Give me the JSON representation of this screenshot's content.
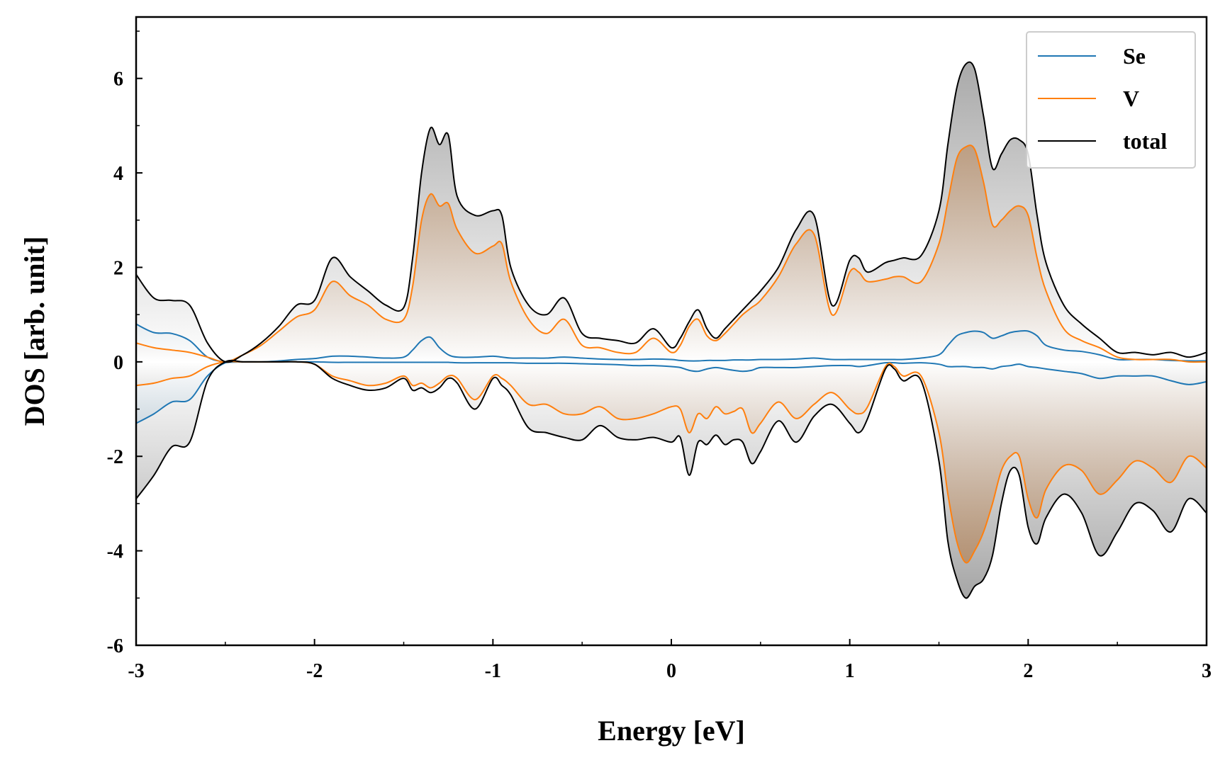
{
  "chart_data": {
    "type": "line",
    "xlabel": "Energy [eV]",
    "ylabel": "DOS [arb. unit]",
    "xlim": [
      -3,
      3
    ],
    "ylim": [
      -6,
      7.3
    ],
    "xticks": [
      -3,
      -2,
      -1,
      0,
      1,
      2,
      3
    ],
    "xtick_labels": [
      "-3",
      "-2",
      "-1",
      "0",
      "1",
      "2",
      "3"
    ],
    "yticks": [
      -6,
      -4,
      -2,
      0,
      2,
      4,
      6
    ],
    "ytick_labels": [
      "-6",
      "-4",
      "-2",
      "0",
      "2",
      "4",
      "6"
    ],
    "grid": false,
    "legend_position": "top-right",
    "fill": "gradient to zero line",
    "x": [
      -3.0,
      -2.9,
      -2.8,
      -2.7,
      -2.6,
      -2.5,
      -2.4,
      -2.3,
      -2.2,
      -2.1,
      -2.0,
      -1.9,
      -1.8,
      -1.7,
      -1.6,
      -1.5,
      -1.45,
      -1.4,
      -1.35,
      -1.3,
      -1.25,
      -1.2,
      -1.1,
      -1.0,
      -0.95,
      -0.9,
      -0.8,
      -0.7,
      -0.6,
      -0.5,
      -0.4,
      -0.3,
      -0.2,
      -0.1,
      0.0,
      0.05,
      0.1,
      0.15,
      0.2,
      0.25,
      0.3,
      0.35,
      0.4,
      0.45,
      0.5,
      0.6,
      0.7,
      0.8,
      0.9,
      1.0,
      1.05,
      1.1,
      1.2,
      1.25,
      1.3,
      1.4,
      1.5,
      1.55,
      1.6,
      1.65,
      1.7,
      1.75,
      1.8,
      1.85,
      1.9,
      1.95,
      2.0,
      2.05,
      2.1,
      2.2,
      2.3,
      2.4,
      2.5,
      2.6,
      2.7,
      2.8,
      2.9,
      3.0
    ],
    "series": [
      {
        "name": "Se",
        "color": "#1f77b4",
        "up": [
          0.8,
          0.62,
          0.6,
          0.45,
          0.1,
          0.0,
          0.0,
          0.0,
          0.02,
          0.05,
          0.07,
          0.12,
          0.12,
          0.1,
          0.08,
          0.1,
          0.25,
          0.45,
          0.52,
          0.3,
          0.15,
          0.1,
          0.1,
          0.12,
          0.1,
          0.08,
          0.08,
          0.08,
          0.1,
          0.08,
          0.06,
          0.05,
          0.05,
          0.06,
          0.05,
          0.03,
          0.02,
          0.02,
          0.03,
          0.03,
          0.03,
          0.04,
          0.04,
          0.04,
          0.05,
          0.05,
          0.06,
          0.08,
          0.05,
          0.05,
          0.05,
          0.05,
          0.05,
          0.05,
          0.05,
          0.08,
          0.15,
          0.35,
          0.55,
          0.62,
          0.65,
          0.62,
          0.5,
          0.55,
          0.62,
          0.65,
          0.65,
          0.55,
          0.35,
          0.25,
          0.22,
          0.15,
          0.05,
          0.05,
          0.05,
          0.03,
          0.02,
          0.02
        ],
        "down": [
          -1.3,
          -1.1,
          -0.85,
          -0.8,
          -0.3,
          -0.02,
          0.0,
          0.0,
          0.0,
          0.0,
          0.0,
          -0.01,
          -0.01,
          -0.01,
          -0.01,
          -0.01,
          -0.01,
          -0.01,
          -0.01,
          -0.01,
          -0.01,
          -0.02,
          -0.02,
          -0.02,
          -0.02,
          -0.02,
          -0.03,
          -0.03,
          -0.03,
          -0.04,
          -0.05,
          -0.06,
          -0.08,
          -0.08,
          -0.1,
          -0.12,
          -0.18,
          -0.2,
          -0.15,
          -0.12,
          -0.15,
          -0.18,
          -0.2,
          -0.18,
          -0.12,
          -0.12,
          -0.12,
          -0.1,
          -0.08,
          -0.08,
          -0.1,
          -0.08,
          -0.02,
          -0.02,
          -0.03,
          -0.02,
          -0.05,
          -0.1,
          -0.1,
          -0.1,
          -0.12,
          -0.12,
          -0.15,
          -0.1,
          -0.08,
          -0.05,
          -0.1,
          -0.12,
          -0.15,
          -0.2,
          -0.25,
          -0.35,
          -0.3,
          -0.3,
          -0.3,
          -0.4,
          -0.48,
          -0.42
        ]
      },
      {
        "name": "V",
        "color": "#ff7f0e",
        "up": [
          0.4,
          0.3,
          0.25,
          0.2,
          0.1,
          0.0,
          0.15,
          0.35,
          0.65,
          0.95,
          1.1,
          1.7,
          1.4,
          1.2,
          0.9,
          0.9,
          1.6,
          3.0,
          3.55,
          3.3,
          3.35,
          2.8,
          2.3,
          2.45,
          2.5,
          1.7,
          0.9,
          0.6,
          0.9,
          0.35,
          0.3,
          0.2,
          0.2,
          0.5,
          0.2,
          0.35,
          0.75,
          0.9,
          0.55,
          0.45,
          0.6,
          0.8,
          1.0,
          1.15,
          1.3,
          1.8,
          2.5,
          2.7,
          1.0,
          1.9,
          1.9,
          1.7,
          1.75,
          1.8,
          1.8,
          1.7,
          2.5,
          3.4,
          4.3,
          4.55,
          4.5,
          3.8,
          2.9,
          3.0,
          3.2,
          3.3,
          3.1,
          2.2,
          1.5,
          0.7,
          0.45,
          0.3,
          0.1,
          0.05,
          0.05,
          0.05,
          0.0,
          0.0
        ],
        "down": [
          -0.5,
          -0.45,
          -0.35,
          -0.3,
          -0.1,
          0.0,
          0.0,
          0.0,
          0.0,
          0.0,
          -0.05,
          -0.3,
          -0.4,
          -0.5,
          -0.45,
          -0.3,
          -0.5,
          -0.45,
          -0.55,
          -0.45,
          -0.3,
          -0.35,
          -0.8,
          -0.3,
          -0.35,
          -0.5,
          -0.9,
          -0.9,
          -1.1,
          -1.1,
          -0.95,
          -1.2,
          -1.2,
          -1.1,
          -0.95,
          -1.0,
          -1.5,
          -1.1,
          -1.2,
          -0.95,
          -1.1,
          -1.05,
          -1.0,
          -1.5,
          -1.3,
          -0.85,
          -1.2,
          -0.9,
          -0.65,
          -1.0,
          -1.1,
          -0.95,
          -0.1,
          -0.1,
          -0.3,
          -0.3,
          -1.5,
          -2.8,
          -3.8,
          -4.25,
          -4.0,
          -3.6,
          -3.0,
          -2.3,
          -2.0,
          -2.0,
          -2.9,
          -3.3,
          -2.7,
          -2.2,
          -2.3,
          -2.8,
          -2.5,
          -2.1,
          -2.25,
          -2.55,
          -2.0,
          -2.25
        ]
      },
      {
        "name": "total",
        "color": "#000000",
        "up": [
          1.85,
          1.35,
          1.3,
          1.2,
          0.4,
          0.0,
          0.15,
          0.4,
          0.75,
          1.2,
          1.3,
          2.2,
          1.8,
          1.5,
          1.2,
          1.15,
          2.2,
          4.0,
          4.95,
          4.6,
          4.8,
          3.5,
          3.1,
          3.2,
          3.1,
          2.0,
          1.2,
          1.0,
          1.35,
          0.6,
          0.5,
          0.45,
          0.4,
          0.7,
          0.3,
          0.5,
          0.85,
          1.1,
          0.7,
          0.5,
          0.7,
          0.9,
          1.1,
          1.3,
          1.5,
          2.0,
          2.8,
          3.1,
          1.2,
          2.15,
          2.2,
          1.9,
          2.1,
          2.15,
          2.2,
          2.25,
          3.2,
          4.6,
          5.8,
          6.3,
          6.2,
          5.2,
          4.1,
          4.4,
          4.7,
          4.7,
          4.4,
          3.1,
          2.1,
          1.2,
          0.8,
          0.5,
          0.2,
          0.2,
          0.15,
          0.2,
          0.1,
          0.2
        ],
        "down": [
          -2.9,
          -2.4,
          -1.8,
          -1.7,
          -0.4,
          0.0,
          0.0,
          0.0,
          0.0,
          0.0,
          -0.05,
          -0.35,
          -0.5,
          -0.6,
          -0.55,
          -0.35,
          -0.6,
          -0.55,
          -0.65,
          -0.55,
          -0.35,
          -0.45,
          -1.0,
          -0.35,
          -0.5,
          -0.7,
          -1.4,
          -1.5,
          -1.6,
          -1.65,
          -1.35,
          -1.6,
          -1.65,
          -1.6,
          -1.7,
          -1.6,
          -2.4,
          -1.7,
          -1.75,
          -1.55,
          -1.75,
          -1.65,
          -1.7,
          -2.15,
          -1.9,
          -1.25,
          -1.7,
          -1.15,
          -0.9,
          -1.3,
          -1.5,
          -1.2,
          -0.15,
          -0.15,
          -0.4,
          -0.4,
          -2.1,
          -3.8,
          -4.6,
          -5.0,
          -4.75,
          -4.6,
          -4.1,
          -3.0,
          -2.3,
          -2.4,
          -3.5,
          -3.85,
          -3.3,
          -2.8,
          -3.2,
          -4.1,
          -3.6,
          -3.0,
          -3.15,
          -3.6,
          -2.9,
          -3.2
        ]
      }
    ]
  }
}
